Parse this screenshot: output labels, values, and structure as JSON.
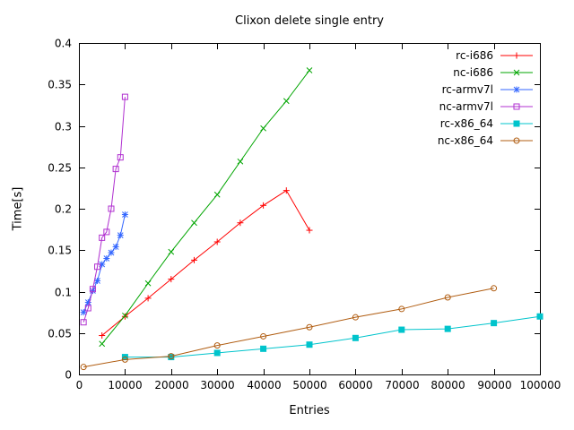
{
  "figure": {
    "background": "#ffffff",
    "axis_color": "#000000"
  },
  "chart_data": {
    "type": "line",
    "title": "Clixon delete single entry",
    "xlabel": "Entries",
    "ylabel": "Time[s]",
    "xlim": [
      0,
      100000
    ],
    "ylim": [
      0,
      0.4
    ],
    "grid": false,
    "legend_position": "top-right-inside",
    "xticks": {
      "values": [
        0,
        10000,
        20000,
        30000,
        40000,
        50000,
        60000,
        70000,
        80000,
        90000,
        100000
      ],
      "labels": [
        "0",
        "10000",
        "20000",
        "30000",
        "40000",
        "50000",
        "60000",
        "70000",
        "80000",
        "90000",
        "100000"
      ]
    },
    "yticks": {
      "values": [
        0,
        0.05,
        0.1,
        0.15,
        0.2,
        0.25,
        0.3,
        0.35,
        0.4
      ],
      "labels": [
        "0",
        "0.05",
        "0.1",
        "0.15",
        "0.2",
        "0.25",
        "0.3",
        "0.35",
        "0.4"
      ]
    },
    "series": [
      {
        "name": "rc-i686",
        "color": "#ff0000",
        "marker": "plus",
        "x": [
          5000,
          10000,
          15000,
          20000,
          25000,
          30000,
          35000,
          40000,
          45000,
          50000
        ],
        "y": [
          0.047,
          0.07,
          0.092,
          0.115,
          0.138,
          0.16,
          0.183,
          0.204,
          0.222,
          0.174
        ]
      },
      {
        "name": "nc-i686",
        "color": "#00a500",
        "marker": "cross",
        "x": [
          5000,
          10000,
          15000,
          20000,
          25000,
          30000,
          35000,
          40000,
          45000,
          50000
        ],
        "y": [
          0.037,
          0.071,
          0.11,
          0.148,
          0.183,
          0.217,
          0.257,
          0.297,
          0.33,
          0.367
        ]
      },
      {
        "name": "rc-armv7l",
        "color": "#3366ff",
        "marker": "asterisk",
        "x": [
          1000,
          2000,
          3000,
          4000,
          5000,
          6000,
          7000,
          8000,
          9000,
          10000
        ],
        "y": [
          0.075,
          0.087,
          0.101,
          0.113,
          0.133,
          0.14,
          0.147,
          0.154,
          0.168,
          0.193
        ]
      },
      {
        "name": "nc-armv7l",
        "color": "#b030d0",
        "marker": "open-square",
        "x": [
          1000,
          2000,
          3000,
          4000,
          5000,
          6000,
          7000,
          8000,
          9000,
          10000
        ],
        "y": [
          0.063,
          0.08,
          0.103,
          0.13,
          0.165,
          0.172,
          0.2,
          0.248,
          0.262,
          0.335
        ]
      },
      {
        "name": "rc-x86_64",
        "color": "#00c4cc",
        "marker": "filled-square",
        "x": [
          10000,
          20000,
          30000,
          40000,
          50000,
          60000,
          70000,
          80000,
          90000,
          100000
        ],
        "y": [
          0.021,
          0.021,
          0.026,
          0.031,
          0.036,
          0.044,
          0.054,
          0.055,
          0.062,
          0.07
        ]
      },
      {
        "name": "nc-x86_64",
        "color": "#b05c10",
        "marker": "open-circle",
        "x": [
          1000,
          10000,
          20000,
          30000,
          40000,
          50000,
          60000,
          70000,
          80000,
          90000
        ],
        "y": [
          0.009,
          0.018,
          0.022,
          0.035,
          0.046,
          0.057,
          0.069,
          0.079,
          0.093,
          0.104
        ]
      }
    ]
  }
}
